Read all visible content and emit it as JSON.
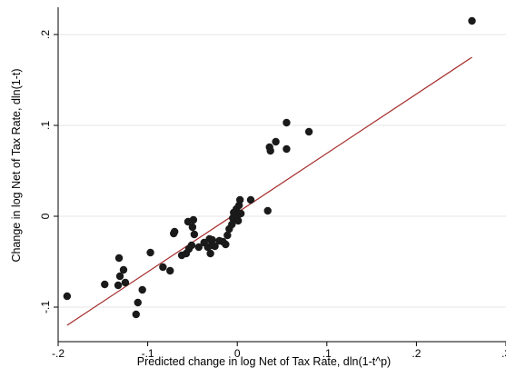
{
  "chart_data": {
    "type": "scatter",
    "title": "",
    "xlabel": "Predicted change in log Net of Tax Rate, dln(1-t^p)",
    "ylabel": "Change in log Net of Tax Rate, dln(1-t)",
    "xlim": [
      -0.2,
      0.3
    ],
    "ylim": [
      -0.13,
      0.22
    ],
    "x_ticks": [
      -0.2,
      -0.1,
      0,
      0.1,
      0.2,
      0.3
    ],
    "x_tick_labels": [
      "-.2",
      "-.1",
      "0",
      ".1",
      ".2",
      ".3"
    ],
    "y_ticks": [
      -0.1,
      0,
      0.1,
      0.2
    ],
    "y_tick_labels": [
      "-.1",
      "0",
      ".1",
      ".2"
    ],
    "grid": "horizontal",
    "colors": {
      "points": "#1a1a1a",
      "fit_line": "#a52a2a",
      "grid": "#e6e6e6",
      "axis": "#000000"
    },
    "fit_line": {
      "x": [
        -0.19,
        0.262
      ],
      "y": [
        -0.12,
        0.175
      ]
    },
    "points": [
      {
        "x": 0.262,
        "y": 0.215
      },
      {
        "x": 0.08,
        "y": 0.093
      },
      {
        "x": 0.055,
        "y": 0.103
      },
      {
        "x": 0.055,
        "y": 0.074
      },
      {
        "x": 0.043,
        "y": 0.082
      },
      {
        "x": 0.036,
        "y": 0.076
      },
      {
        "x": 0.037,
        "y": 0.072
      },
      {
        "x": 0.034,
        "y": 0.006
      },
      {
        "x": 0.015,
        "y": 0.018
      },
      {
        "x": 0.003,
        "y": 0.018
      },
      {
        "x": 0.004,
        "y": 0.003
      },
      {
        "x": 0.002,
        "y": 0.012
      },
      {
        "x": 0.001,
        "y": -0.005
      },
      {
        "x": 0.0,
        "y": 0.0
      },
      {
        "x": -0.001,
        "y": 0.008
      },
      {
        "x": -0.002,
        "y": 0.002
      },
      {
        "x": -0.003,
        "y": -0.003
      },
      {
        "x": -0.004,
        "y": 0.004
      },
      {
        "x": -0.005,
        "y": -0.002
      },
      {
        "x": -0.006,
        "y": -0.009
      },
      {
        "x": -0.009,
        "y": -0.014
      },
      {
        "x": -0.011,
        "y": -0.021
      },
      {
        "x": -0.013,
        "y": -0.031
      },
      {
        "x": -0.016,
        "y": -0.028
      },
      {
        "x": -0.02,
        "y": -0.027
      },
      {
        "x": -0.025,
        "y": -0.033
      },
      {
        "x": -0.028,
        "y": -0.026
      },
      {
        "x": -0.029,
        "y": -0.032
      },
      {
        "x": -0.03,
        "y": -0.041
      },
      {
        "x": -0.031,
        "y": -0.025
      },
      {
        "x": -0.033,
        "y": -0.034
      },
      {
        "x": -0.037,
        "y": -0.029
      },
      {
        "x": -0.043,
        "y": -0.034
      },
      {
        "x": -0.048,
        "y": -0.02
      },
      {
        "x": -0.049,
        "y": -0.004
      },
      {
        "x": -0.05,
        "y": -0.012
      },
      {
        "x": -0.051,
        "y": -0.032
      },
      {
        "x": -0.054,
        "y": -0.036
      },
      {
        "x": -0.055,
        "y": -0.006
      },
      {
        "x": -0.057,
        "y": -0.041
      },
      {
        "x": -0.062,
        "y": -0.043
      },
      {
        "x": -0.07,
        "y": -0.017
      },
      {
        "x": -0.071,
        "y": -0.019
      },
      {
        "x": -0.075,
        "y": -0.06
      },
      {
        "x": -0.083,
        "y": -0.056
      },
      {
        "x": -0.097,
        "y": -0.04
      },
      {
        "x": -0.106,
        "y": -0.081
      },
      {
        "x": -0.111,
        "y": -0.095
      },
      {
        "x": -0.113,
        "y": -0.108
      },
      {
        "x": -0.125,
        "y": -0.073
      },
      {
        "x": -0.127,
        "y": -0.059
      },
      {
        "x": -0.131,
        "y": -0.066
      },
      {
        "x": -0.132,
        "y": -0.046
      },
      {
        "x": -0.133,
        "y": -0.076
      },
      {
        "x": -0.148,
        "y": -0.075
      },
      {
        "x": -0.19,
        "y": -0.088
      }
    ]
  }
}
